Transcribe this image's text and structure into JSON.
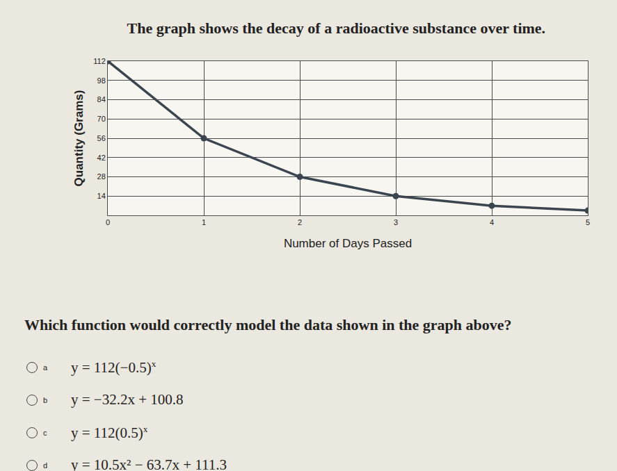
{
  "chart_data": {
    "type": "line",
    "title": "The graph shows the decay of a radioactive substance over time.",
    "x_label": "Number of Days Passed",
    "y_label": "Quantity (Grams)",
    "x": [
      0,
      1,
      2,
      3,
      4,
      5
    ],
    "values": [
      112,
      56,
      28,
      14,
      7,
      3.5
    ],
    "color": "#3b4550",
    "marker": "circle",
    "xlim": [
      0,
      5
    ],
    "xticks": [
      0,
      1,
      2,
      3,
      4,
      5
    ],
    "ylim": [
      0,
      112
    ],
    "yticks": [
      14,
      28,
      42,
      56,
      70,
      84,
      98,
      112
    ],
    "grid": true
  },
  "question": "Which function would correctly model the data shown in the graph above?",
  "choices": [
    {
      "letter": "a",
      "base": "y = 112(−0.5)",
      "exponent": "x"
    },
    {
      "letter": "b",
      "base": "y = −32.2x + 100.8"
    },
    {
      "letter": "c",
      "base": "y = 112(0.5)",
      "exponent": "x"
    },
    {
      "letter": "d",
      "base": "y = 10.5x² − 63.7x + 111.3"
    }
  ]
}
